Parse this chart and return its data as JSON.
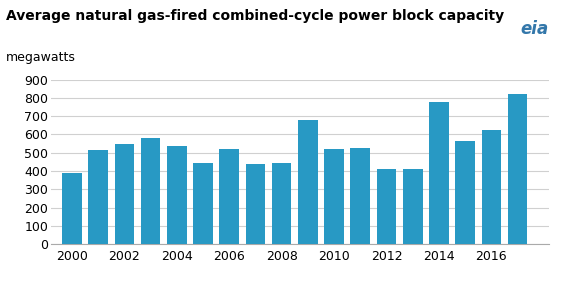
{
  "title": "Average natural gas-fired combined-cycle power block capacity",
  "ylabel": "megawatts",
  "years": [
    2000,
    2001,
    2002,
    2003,
    2004,
    2005,
    2006,
    2007,
    2008,
    2009,
    2010,
    2011,
    2012,
    2013,
    2014,
    2015,
    2016,
    2017
  ],
  "values": [
    390,
    515,
    548,
    583,
    535,
    445,
    522,
    438,
    443,
    678,
    520,
    528,
    410,
    412,
    775,
    562,
    625,
    820
  ],
  "bar_color": "#2899c4",
  "ylim": [
    0,
    900
  ],
  "yticks": [
    0,
    100,
    200,
    300,
    400,
    500,
    600,
    700,
    800,
    900
  ],
  "xticks": [
    2000,
    2002,
    2004,
    2006,
    2008,
    2010,
    2012,
    2014,
    2016
  ],
  "background_color": "#ffffff",
  "grid_color": "#d0d0d0",
  "title_fontsize": 10,
  "label_fontsize": 9,
  "tick_fontsize": 9
}
